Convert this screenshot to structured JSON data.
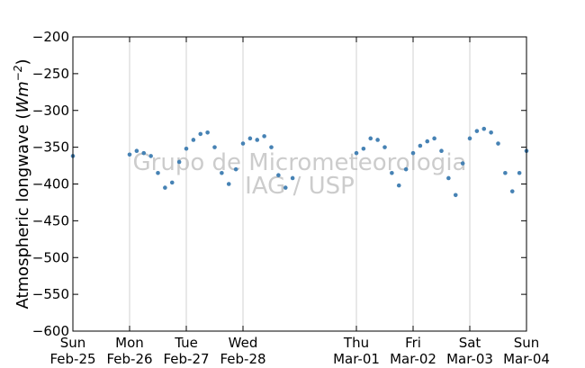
{
  "chart_data": {
    "type": "scatter",
    "ylabel": "Atmospheric longwave",
    "ylabel_unit_base": "Wm",
    "ylabel_unit_exp": "−2",
    "ylim": [
      -600,
      -200
    ],
    "yticks": [
      -200,
      -250,
      -300,
      -350,
      -400,
      -450,
      -500,
      -550,
      -600
    ],
    "ytick_labels": [
      "−200",
      "−250",
      "−300",
      "−350",
      "−400",
      "−450",
      "−500",
      "−550",
      "−600"
    ],
    "xlim": [
      "Feb-25",
      "Mar-04"
    ],
    "xticks": [
      {
        "day": "Sun",
        "date": "Feb-25"
      },
      {
        "day": "Mon",
        "date": "Feb-26"
      },
      {
        "day": "Tue",
        "date": "Feb-27"
      },
      {
        "day": "Wed",
        "date": "Feb-28"
      },
      {
        "day": "Thu",
        "date": "Mar-01"
      },
      {
        "day": "Fri",
        "date": "Mar-02"
      },
      {
        "day": "Sat",
        "date": "Mar-03"
      },
      {
        "day": "Sun",
        "date": "Mar-04"
      }
    ],
    "grid": "vertical",
    "marker_color": "#4682b4",
    "watermark_lines": [
      "Grupo de Micrometeorologia",
      "IAG / USP"
    ],
    "series": [
      {
        "x": [
          "Feb-25 00:00",
          "Feb-26 00:00",
          "Feb-26 03:00",
          "Feb-26 06:00",
          "Feb-26 09:00",
          "Feb-26 12:00",
          "Feb-26 15:00",
          "Feb-26 18:00",
          "Feb-26 21:00",
          "Feb-27 00:00",
          "Feb-27 03:00",
          "Feb-27 06:00",
          "Feb-27 09:00",
          "Feb-27 12:00",
          "Feb-27 15:00",
          "Feb-27 18:00",
          "Feb-27 21:00",
          "Feb-28 00:00",
          "Feb-28 03:00",
          "Feb-28 06:00",
          "Feb-28 09:00",
          "Feb-28 12:00",
          "Feb-28 15:00",
          "Feb-28 18:00",
          "Feb-28 21:00",
          "Mar-01 00:00",
          "Mar-01 03:00",
          "Mar-01 06:00",
          "Mar-01 09:00",
          "Mar-01 12:00",
          "Mar-01 15:00",
          "Mar-01 18:00",
          "Mar-01 21:00",
          "Mar-02 00:00",
          "Mar-02 03:00",
          "Mar-02 06:00",
          "Mar-02 09:00",
          "Mar-02 12:00",
          "Mar-02 15:00",
          "Mar-02 18:00",
          "Mar-02 21:00",
          "Mar-03 00:00",
          "Mar-03 03:00",
          "Mar-03 06:00",
          "Mar-03 09:00",
          "Mar-03 12:00",
          "Mar-03 15:00",
          "Mar-03 18:00",
          "Mar-03 21:00",
          "Mar-04 00:00"
        ],
        "y": [
          -362,
          -360,
          -355,
          -358,
          -362,
          -385,
          -405,
          -398,
          -370,
          -352,
          -340,
          -332,
          -330,
          -350,
          -385,
          -400,
          -380,
          -345,
          -338,
          -340,
          -335,
          -350,
          -388,
          -405,
          -392,
          -358,
          -352,
          -338,
          -340,
          -350,
          -385,
          -402,
          -380,
          -358,
          -348,
          -342,
          -338,
          -355,
          -392,
          -415,
          -372,
          -338,
          -328,
          -325,
          -330,
          -345,
          -385,
          -410,
          -385,
          -355
        ]
      }
    ]
  }
}
